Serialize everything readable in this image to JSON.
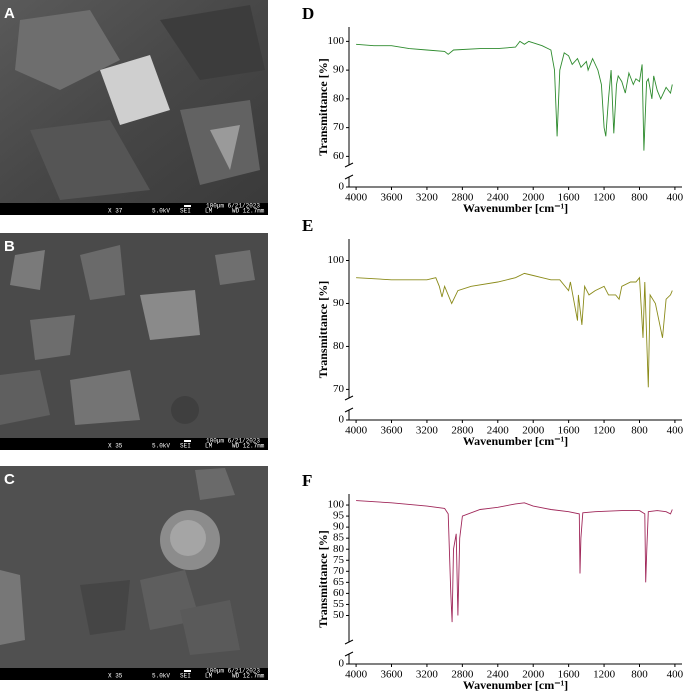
{
  "images": [
    {
      "label": "A",
      "info": [
        "X 37",
        "5.0kV",
        "SEI",
        "LM",
        "100µm 6/21/2023",
        "WD 12.7mm"
      ]
    },
    {
      "label": "B",
      "info": [
        "X 35",
        "5.0kV",
        "SEI",
        "LM",
        "100µm 6/21/2023",
        "WD 12.7mm"
      ]
    },
    {
      "label": "C",
      "info": [
        "X 35",
        "5.0kV",
        "SEI",
        "LM",
        "100µm 6/21/2023",
        "WD 12.7mm"
      ]
    }
  ],
  "chart_data": [
    {
      "type": "line",
      "panel_label": "D",
      "x_label": "Wavenumber [cm⁻¹]",
      "y_label": "Transmittance [%]",
      "color": "#2e8b2e",
      "xlim": [
        4080,
        320
      ],
      "xticks": [
        4000,
        3600,
        3200,
        2800,
        2400,
        2000,
        1600,
        1200,
        800,
        400
      ],
      "ylim": [
        0,
        105
      ],
      "yticks": [
        0,
        60,
        70,
        80,
        90,
        100
      ],
      "y_break": [
        5,
        57
      ],
      "x": [
        4000,
        3800,
        3600,
        3400,
        3200,
        3000,
        2960,
        2900,
        2600,
        2400,
        2200,
        2150,
        2100,
        2050,
        2000,
        1900,
        1800,
        1760,
        1730,
        1700,
        1650,
        1600,
        1560,
        1500,
        1460,
        1400,
        1380,
        1330,
        1270,
        1230,
        1200,
        1180,
        1150,
        1120,
        1090,
        1060,
        1040,
        1000,
        960,
        920,
        870,
        840,
        800,
        770,
        750,
        720,
        700,
        660,
        640,
        600,
        560,
        500,
        450,
        430
      ],
      "values": [
        99,
        98.5,
        98.5,
        97.5,
        97,
        96.5,
        95.5,
        97,
        97.5,
        97.5,
        98,
        100,
        99,
        100,
        99.5,
        98.5,
        97,
        90,
        67,
        90,
        96,
        95,
        92,
        94,
        91,
        93,
        90,
        94,
        90,
        85,
        70,
        67,
        80,
        90,
        68,
        85,
        88,
        86,
        82,
        89,
        85,
        87,
        86,
        92,
        62,
        86,
        87,
        80,
        88,
        83,
        80,
        84,
        82,
        85
      ]
    },
    {
      "type": "line",
      "panel_label": "E",
      "x_label": "Wavenumber [cm⁻¹]",
      "y_label": "Transmittance [%]",
      "color": "#8b8b1a",
      "xlim": [
        4080,
        320
      ],
      "xticks": [
        4000,
        3600,
        3200,
        2800,
        2400,
        2000,
        1600,
        1200,
        800,
        400
      ],
      "ylim": [
        0,
        105
      ],
      "yticks": [
        0,
        70,
        80,
        90,
        100
      ],
      "y_break": [
        5,
        68
      ],
      "x": [
        4000,
        3600,
        3200,
        3100,
        3060,
        3030,
        3000,
        2920,
        2850,
        2700,
        2400,
        2200,
        2100,
        2000,
        1900,
        1800,
        1700,
        1600,
        1580,
        1500,
        1490,
        1450,
        1420,
        1370,
        1300,
        1200,
        1150,
        1070,
        1030,
        1000,
        900,
        840,
        800,
        760,
        740,
        700,
        680,
        620,
        540,
        500,
        450,
        430
      ],
      "values": [
        96,
        95.5,
        95.5,
        96,
        94,
        91.5,
        94,
        90,
        93,
        94,
        95,
        96,
        97,
        96.5,
        96,
        95.5,
        95.5,
        93,
        95,
        86,
        92,
        85,
        94,
        92,
        93,
        94,
        92,
        92,
        91,
        94,
        95,
        95,
        96,
        82,
        95,
        70.5,
        92,
        90,
        82,
        91,
        92,
        93
      ]
    },
    {
      "type": "line",
      "panel_label": "F",
      "x_label": "Wavenumber [cm⁻¹]",
      "y_label": "Transmittance [%]",
      "color": "#a0285a",
      "xlim": [
        4080,
        320
      ],
      "xticks": [
        4000,
        3600,
        3200,
        2800,
        2400,
        2000,
        1600,
        1200,
        800,
        400
      ],
      "ylim": [
        0,
        105
      ],
      "yticks": [
        0,
        50,
        55,
        60,
        65,
        70,
        75,
        80,
        85,
        90,
        95,
        100
      ],
      "y_break": [
        5,
        38
      ],
      "x": [
        4000,
        3600,
        3200,
        3000,
        2960,
        2930,
        2916,
        2900,
        2870,
        2850,
        2830,
        2800,
        2600,
        2400,
        2200,
        2100,
        2000,
        1800,
        1600,
        1480,
        1472,
        1462,
        1440,
        1300,
        1000,
        800,
        740,
        730,
        718,
        700,
        600,
        500,
        450,
        430
      ],
      "values": [
        102,
        101,
        99.5,
        98.5,
        96,
        60,
        47,
        80,
        87,
        50,
        85,
        95,
        98,
        99,
        100.5,
        101,
        99.5,
        98,
        97,
        96,
        69,
        85,
        96.5,
        97,
        97.5,
        97.5,
        96,
        65,
        80,
        97,
        97.5,
        97,
        96,
        98
      ]
    }
  ]
}
